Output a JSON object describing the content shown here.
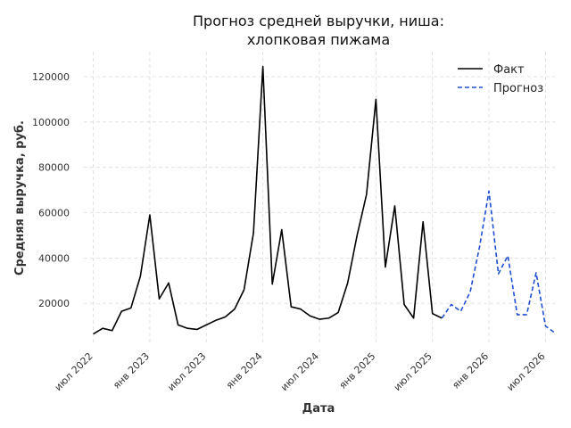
{
  "chart_data": {
    "type": "line",
    "title_lines": [
      "Прогноз средней выручки, ниша:",
      "хлопковая пижама"
    ],
    "xlabel": "Дата",
    "ylabel": "Средняя выручка, руб.",
    "x_tick_labels": [
      "июл 2022",
      "янв 2023",
      "июл 2023",
      "янв 2024",
      "июл 2024",
      "янв 2025",
      "июл 2025",
      "янв 2026",
      "июл 2026"
    ],
    "x_ticks": [
      "2022-07",
      "2023-01",
      "2023-07",
      "2024-01",
      "2024-07",
      "2025-01",
      "2025-07",
      "2026-01",
      "2026-07"
    ],
    "y_ticks": [
      20000,
      40000,
      60000,
      80000,
      100000,
      120000
    ],
    "y_tick_labels": [
      "20000",
      "40000",
      "60000",
      "80000",
      "100000",
      "120000"
    ],
    "xlim": [
      "2022-06",
      "2026-08"
    ],
    "ylim": [
      2000,
      131000
    ],
    "grid": true,
    "legend_position": "top-right",
    "series": [
      {
        "name": "Факт",
        "color": "#000000",
        "style": "solid",
        "x": [
          "2022-07",
          "2022-08",
          "2022-09",
          "2022-10",
          "2022-11",
          "2022-12",
          "2023-01",
          "2023-02",
          "2023-03",
          "2023-04",
          "2023-05",
          "2023-06",
          "2023-07",
          "2023-08",
          "2023-09",
          "2023-10",
          "2023-11",
          "2023-12",
          "2024-01",
          "2024-02",
          "2024-03",
          "2024-04",
          "2024-05",
          "2024-06",
          "2024-07",
          "2024-08",
          "2024-09",
          "2024-10",
          "2024-11",
          "2024-12",
          "2025-01",
          "2025-02",
          "2025-03",
          "2025-04",
          "2025-05",
          "2025-06",
          "2025-07",
          "2025-08"
        ],
        "values": [
          6500,
          9000,
          8000,
          16500,
          18000,
          32000,
          59000,
          22000,
          29000,
          10500,
          9000,
          8500,
          10500,
          12500,
          14000,
          17500,
          26000,
          51000,
          124500,
          28500,
          52500,
          18500,
          17500,
          14500,
          13000,
          13500,
          16000,
          29000,
          50000,
          68000,
          110000,
          36000,
          63000,
          19500,
          13500,
          56000,
          15500,
          13500
        ]
      },
      {
        "name": "Прогноз",
        "color": "#1f4fd1",
        "style": "dashed",
        "x": [
          "2025-08",
          "2025-09",
          "2025-10",
          "2025-11",
          "2025-12",
          "2026-01",
          "2026-02",
          "2026-03",
          "2026-04",
          "2026-05",
          "2026-06",
          "2026-07",
          "2026-08"
        ],
        "values": [
          13500,
          19500,
          16500,
          25000,
          45000,
          69500,
          33000,
          41000,
          15000,
          15000,
          33500,
          10000,
          7000
        ]
      }
    ]
  }
}
